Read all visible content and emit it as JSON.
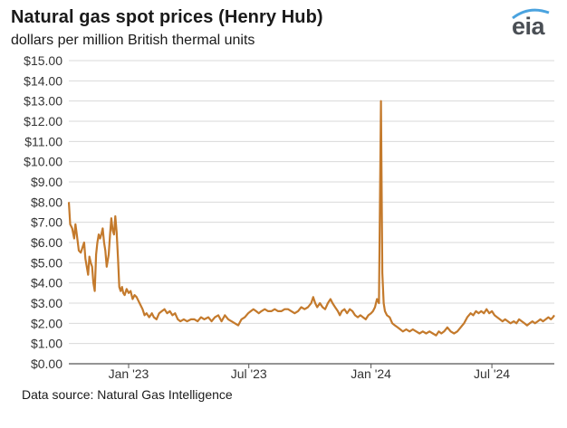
{
  "header": {
    "title": "Natural gas spot prices (Henry Hub)",
    "subtitle": "dollars per million British thermal units",
    "logo_text": "eia"
  },
  "footer": {
    "source": "Data source: Natural Gas Intelligence"
  },
  "colors": {
    "line": "#c47a2c",
    "grid": "#d9d9d9",
    "axis": "#555555",
    "logo": "#4a4f55",
    "logo_accent": "#4aa3df"
  },
  "chart_data": {
    "type": "line",
    "title": "Natural gas spot prices (Henry Hub)",
    "subtitle": "dollars per million British thermal units",
    "ylim": [
      0,
      15
    ],
    "xlim": [
      "2022-10-03",
      "2024-10-03"
    ],
    "grid": true,
    "y_ticks": [
      "$0.00",
      "$1.00",
      "$2.00",
      "$3.00",
      "$4.00",
      "$5.00",
      "$6.00",
      "$7.00",
      "$8.00",
      "$9.00",
      "$10.00",
      "$11.00",
      "$12.00",
      "$13.00",
      "$14.00",
      "$15.00"
    ],
    "x_ticks": [
      {
        "label": "Jan '23",
        "date": "2023-01-01"
      },
      {
        "label": "Jul '23",
        "date": "2023-07-01"
      },
      {
        "label": "Jan '24",
        "date": "2024-01-01"
      },
      {
        "label": "Jul '24",
        "date": "2024-07-01"
      }
    ],
    "series": [
      {
        "points": [
          [
            "2022-10-03",
            8.0
          ],
          [
            "2022-10-05",
            6.9
          ],
          [
            "2022-10-08",
            6.7
          ],
          [
            "2022-10-11",
            6.2
          ],
          [
            "2022-10-13",
            6.9
          ],
          [
            "2022-10-15",
            6.4
          ],
          [
            "2022-10-18",
            5.6
          ],
          [
            "2022-10-21",
            5.5
          ],
          [
            "2022-10-24",
            5.8
          ],
          [
            "2022-10-26",
            6.0
          ],
          [
            "2022-10-28",
            5.2
          ],
          [
            "2022-11-01",
            4.4
          ],
          [
            "2022-11-03",
            5.3
          ],
          [
            "2022-11-05",
            5.0
          ],
          [
            "2022-11-07",
            4.8
          ],
          [
            "2022-11-09",
            4.0
          ],
          [
            "2022-11-11",
            3.6
          ],
          [
            "2022-11-13",
            5.4
          ],
          [
            "2022-11-15",
            6.0
          ],
          [
            "2022-11-17",
            6.4
          ],
          [
            "2022-11-19",
            6.2
          ],
          [
            "2022-11-21",
            6.4
          ],
          [
            "2022-11-23",
            6.7
          ],
          [
            "2022-11-25",
            6.0
          ],
          [
            "2022-11-27",
            5.6
          ],
          [
            "2022-11-29",
            4.8
          ],
          [
            "2022-12-02",
            5.4
          ],
          [
            "2022-12-04",
            6.4
          ],
          [
            "2022-12-06",
            7.2
          ],
          [
            "2022-12-08",
            6.6
          ],
          [
            "2022-12-10",
            6.4
          ],
          [
            "2022-12-12",
            7.3
          ],
          [
            "2022-12-14",
            6.5
          ],
          [
            "2022-12-16",
            5.2
          ],
          [
            "2022-12-18",
            3.8
          ],
          [
            "2022-12-20",
            3.6
          ],
          [
            "2022-12-22",
            3.8
          ],
          [
            "2022-12-24",
            3.5
          ],
          [
            "2022-12-26",
            3.4
          ],
          [
            "2022-12-29",
            3.7
          ],
          [
            "2023-01-01",
            3.5
          ],
          [
            "2023-01-04",
            3.6
          ],
          [
            "2023-01-07",
            3.2
          ],
          [
            "2023-01-10",
            3.4
          ],
          [
            "2023-01-13",
            3.3
          ],
          [
            "2023-01-16",
            3.1
          ],
          [
            "2023-01-19",
            2.9
          ],
          [
            "2023-01-22",
            2.7
          ],
          [
            "2023-01-25",
            2.4
          ],
          [
            "2023-01-28",
            2.5
          ],
          [
            "2023-02-01",
            2.3
          ],
          [
            "2023-02-05",
            2.5
          ],
          [
            "2023-02-08",
            2.3
          ],
          [
            "2023-02-12",
            2.2
          ],
          [
            "2023-02-16",
            2.5
          ],
          [
            "2023-02-20",
            2.6
          ],
          [
            "2023-02-24",
            2.7
          ],
          [
            "2023-02-28",
            2.5
          ],
          [
            "2023-03-04",
            2.6
          ],
          [
            "2023-03-08",
            2.4
          ],
          [
            "2023-03-12",
            2.5
          ],
          [
            "2023-03-16",
            2.2
          ],
          [
            "2023-03-20",
            2.1
          ],
          [
            "2023-03-25",
            2.2
          ],
          [
            "2023-03-30",
            2.1
          ],
          [
            "2023-04-05",
            2.2
          ],
          [
            "2023-04-10",
            2.2
          ],
          [
            "2023-04-15",
            2.1
          ],
          [
            "2023-04-20",
            2.3
          ],
          [
            "2023-04-25",
            2.2
          ],
          [
            "2023-05-01",
            2.3
          ],
          [
            "2023-05-06",
            2.1
          ],
          [
            "2023-05-11",
            2.3
          ],
          [
            "2023-05-16",
            2.4
          ],
          [
            "2023-05-21",
            2.1
          ],
          [
            "2023-05-26",
            2.4
          ],
          [
            "2023-05-31",
            2.2
          ],
          [
            "2023-06-05",
            2.1
          ],
          [
            "2023-06-10",
            2.0
          ],
          [
            "2023-06-15",
            1.9
          ],
          [
            "2023-06-20",
            2.2
          ],
          [
            "2023-06-25",
            2.3
          ],
          [
            "2023-06-30",
            2.5
          ],
          [
            "2023-07-04",
            2.6
          ],
          [
            "2023-07-08",
            2.7
          ],
          [
            "2023-07-12",
            2.6
          ],
          [
            "2023-07-16",
            2.5
          ],
          [
            "2023-07-20",
            2.6
          ],
          [
            "2023-07-25",
            2.7
          ],
          [
            "2023-07-30",
            2.6
          ],
          [
            "2023-08-04",
            2.6
          ],
          [
            "2023-08-09",
            2.7
          ],
          [
            "2023-08-14",
            2.6
          ],
          [
            "2023-08-19",
            2.6
          ],
          [
            "2023-08-24",
            2.7
          ],
          [
            "2023-08-29",
            2.7
          ],
          [
            "2023-09-03",
            2.6
          ],
          [
            "2023-09-08",
            2.5
          ],
          [
            "2023-09-13",
            2.6
          ],
          [
            "2023-09-18",
            2.8
          ],
          [
            "2023-09-23",
            2.7
          ],
          [
            "2023-09-28",
            2.8
          ],
          [
            "2023-10-03",
            3.0
          ],
          [
            "2023-10-06",
            3.3
          ],
          [
            "2023-10-09",
            3.0
          ],
          [
            "2023-10-12",
            2.8
          ],
          [
            "2023-10-16",
            3.0
          ],
          [
            "2023-10-20",
            2.8
          ],
          [
            "2023-10-24",
            2.7
          ],
          [
            "2023-10-28",
            3.0
          ],
          [
            "2023-11-01",
            3.2
          ],
          [
            "2023-11-04",
            3.0
          ],
          [
            "2023-11-08",
            2.8
          ],
          [
            "2023-11-12",
            2.6
          ],
          [
            "2023-11-15",
            2.4
          ],
          [
            "2023-11-18",
            2.6
          ],
          [
            "2023-11-22",
            2.7
          ],
          [
            "2023-11-26",
            2.5
          ],
          [
            "2023-11-30",
            2.7
          ],
          [
            "2023-12-04",
            2.6
          ],
          [
            "2023-12-08",
            2.4
          ],
          [
            "2023-12-12",
            2.3
          ],
          [
            "2023-12-16",
            2.4
          ],
          [
            "2023-12-20",
            2.3
          ],
          [
            "2023-12-24",
            2.2
          ],
          [
            "2023-12-28",
            2.4
          ],
          [
            "2024-01-01",
            2.5
          ],
          [
            "2024-01-04",
            2.6
          ],
          [
            "2024-01-07",
            2.8
          ],
          [
            "2024-01-10",
            3.2
          ],
          [
            "2024-01-13",
            3.0
          ],
          [
            "2024-01-16",
            13.0
          ],
          [
            "2024-01-18",
            4.5
          ],
          [
            "2024-01-20",
            3.0
          ],
          [
            "2024-01-22",
            2.6
          ],
          [
            "2024-01-25",
            2.4
          ],
          [
            "2024-01-29",
            2.3
          ],
          [
            "2024-02-02",
            2.0
          ],
          [
            "2024-02-06",
            1.9
          ],
          [
            "2024-02-10",
            1.8
          ],
          [
            "2024-02-14",
            1.7
          ],
          [
            "2024-02-18",
            1.6
          ],
          [
            "2024-02-23",
            1.7
          ],
          [
            "2024-02-28",
            1.6
          ],
          [
            "2024-03-04",
            1.7
          ],
          [
            "2024-03-09",
            1.6
          ],
          [
            "2024-03-14",
            1.5
          ],
          [
            "2024-03-19",
            1.6
          ],
          [
            "2024-03-24",
            1.5
          ],
          [
            "2024-03-29",
            1.6
          ],
          [
            "2024-04-03",
            1.5
          ],
          [
            "2024-04-08",
            1.4
          ],
          [
            "2024-04-12",
            1.6
          ],
          [
            "2024-04-16",
            1.5
          ],
          [
            "2024-04-20",
            1.6
          ],
          [
            "2024-04-25",
            1.8
          ],
          [
            "2024-04-30",
            1.6
          ],
          [
            "2024-05-05",
            1.5
          ],
          [
            "2024-05-10",
            1.6
          ],
          [
            "2024-05-15",
            1.8
          ],
          [
            "2024-05-20",
            2.0
          ],
          [
            "2024-05-25",
            2.3
          ],
          [
            "2024-05-30",
            2.5
          ],
          [
            "2024-06-03",
            2.4
          ],
          [
            "2024-06-07",
            2.6
          ],
          [
            "2024-06-11",
            2.5
          ],
          [
            "2024-06-15",
            2.6
          ],
          [
            "2024-06-19",
            2.5
          ],
          [
            "2024-06-23",
            2.7
          ],
          [
            "2024-06-27",
            2.5
          ],
          [
            "2024-07-01",
            2.6
          ],
          [
            "2024-07-05",
            2.4
          ],
          [
            "2024-07-09",
            2.3
          ],
          [
            "2024-07-13",
            2.2
          ],
          [
            "2024-07-17",
            2.1
          ],
          [
            "2024-07-21",
            2.2
          ],
          [
            "2024-07-25",
            2.1
          ],
          [
            "2024-07-29",
            2.0
          ],
          [
            "2024-08-03",
            2.1
          ],
          [
            "2024-08-07",
            2.0
          ],
          [
            "2024-08-11",
            2.2
          ],
          [
            "2024-08-15",
            2.1
          ],
          [
            "2024-08-19",
            2.0
          ],
          [
            "2024-08-23",
            1.9
          ],
          [
            "2024-08-27",
            2.0
          ],
          [
            "2024-08-31",
            2.1
          ],
          [
            "2024-09-04",
            2.0
          ],
          [
            "2024-09-08",
            2.1
          ],
          [
            "2024-09-12",
            2.2
          ],
          [
            "2024-09-16",
            2.1
          ],
          [
            "2024-09-20",
            2.2
          ],
          [
            "2024-09-24",
            2.3
          ],
          [
            "2024-09-28",
            2.2
          ],
          [
            "2024-10-01",
            2.3
          ],
          [
            "2024-10-03",
            2.4
          ]
        ]
      }
    ]
  }
}
